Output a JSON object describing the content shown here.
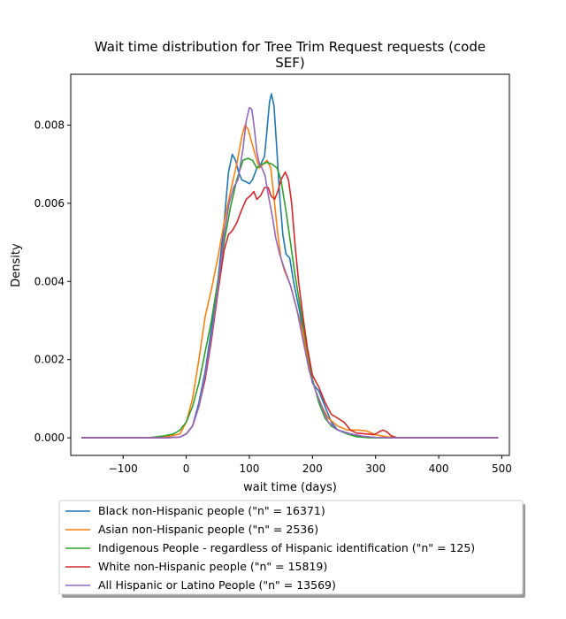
{
  "chart_data": {
    "type": "line",
    "title_line1": "Wait time distribution  for Tree Trim Request requests (code",
    "title_line2": "SEF)",
    "xlabel": "wait time (days)",
    "ylabel": "Density",
    "xlim": [
      -183,
      512
    ],
    "ylim": [
      -0.00045,
      0.0093
    ],
    "x_ticks": [
      -100,
      0,
      100,
      200,
      300,
      400,
      500
    ],
    "x_tick_labels": [
      "−100",
      "0",
      "100",
      "200",
      "300",
      "400",
      "500"
    ],
    "y_ticks": [
      0.0,
      0.002,
      0.004,
      0.006,
      0.008
    ],
    "y_tick_labels": [
      "0.000",
      "0.002",
      "0.004",
      "0.006",
      "0.008"
    ],
    "grid": false,
    "legend_position": "below",
    "series": [
      {
        "name": "Black non-Hispanic people (\"n\" = 16371)",
        "color": "#1f77b4",
        "points": [
          [
            -166,
            0
          ],
          [
            -40,
            0
          ],
          [
            -10,
            2e-05
          ],
          [
            0,
            0.0001
          ],
          [
            10,
            0.0003
          ],
          [
            20,
            0.0009
          ],
          [
            30,
            0.0017
          ],
          [
            40,
            0.0028
          ],
          [
            50,
            0.004
          ],
          [
            60,
            0.0055
          ],
          [
            67,
            0.0068
          ],
          [
            73,
            0.00725
          ],
          [
            78,
            0.0071
          ],
          [
            83,
            0.0068
          ],
          [
            88,
            0.0066
          ],
          [
            95,
            0.00655
          ],
          [
            100,
            0.0065
          ],
          [
            105,
            0.0066
          ],
          [
            112,
            0.0069
          ],
          [
            118,
            0.007
          ],
          [
            124,
            0.0072
          ],
          [
            128,
            0.0079
          ],
          [
            132,
            0.0086
          ],
          [
            135,
            0.0088
          ],
          [
            139,
            0.0085
          ],
          [
            143,
            0.0075
          ],
          [
            148,
            0.0062
          ],
          [
            153,
            0.0052
          ],
          [
            158,
            0.0047
          ],
          [
            164,
            0.0046
          ],
          [
            170,
            0.004
          ],
          [
            180,
            0.0032
          ],
          [
            190,
            0.0022
          ],
          [
            200,
            0.0014
          ],
          [
            210,
            0.0012
          ],
          [
            220,
            0.0008
          ],
          [
            230,
            0.0004
          ],
          [
            240,
            0.0002
          ],
          [
            260,
            0.0001
          ],
          [
            280,
            3e-05
          ],
          [
            300,
            1e-05
          ],
          [
            320,
            0
          ],
          [
            494,
            0
          ]
        ]
      },
      {
        "name": "Asian non-Hispanic people (\"n\" = 2536)",
        "color": "#ff7f0e",
        "points": [
          [
            -166,
            0
          ],
          [
            -40,
            0
          ],
          [
            -10,
            0.0001
          ],
          [
            0,
            0.0004
          ],
          [
            10,
            0.001
          ],
          [
            20,
            0.002
          ],
          [
            30,
            0.0031
          ],
          [
            40,
            0.0038
          ],
          [
            50,
            0.0046
          ],
          [
            60,
            0.0055
          ],
          [
            70,
            0.0063
          ],
          [
            80,
            0.007
          ],
          [
            88,
            0.0077
          ],
          [
            93,
            0.008
          ],
          [
            98,
            0.0079
          ],
          [
            103,
            0.0076
          ],
          [
            110,
            0.0072
          ],
          [
            116,
            0.0069
          ],
          [
            122,
            0.007
          ],
          [
            128,
            0.0071
          ],
          [
            134,
            0.0069
          ],
          [
            140,
            0.006
          ],
          [
            145,
            0.0052
          ],
          [
            150,
            0.0046
          ],
          [
            155,
            0.0043
          ],
          [
            165,
            0.0039
          ],
          [
            175,
            0.0033
          ],
          [
            185,
            0.0027
          ],
          [
            195,
            0.0018
          ],
          [
            205,
            0.0012
          ],
          [
            215,
            0.0008
          ],
          [
            225,
            0.0005
          ],
          [
            240,
            0.0003
          ],
          [
            255,
            0.0002
          ],
          [
            270,
            0.0002
          ],
          [
            285,
            0.00018
          ],
          [
            300,
            8e-05
          ],
          [
            320,
            2e-05
          ],
          [
            340,
            0
          ],
          [
            494,
            0
          ]
        ]
      },
      {
        "name": "Indigenous People - regardless of Hispanic identification (\"n\" = 125)",
        "color": "#2ca02c",
        "points": [
          [
            -166,
            0
          ],
          [
            -60,
            0
          ],
          [
            -35,
            5e-05
          ],
          [
            -20,
            0.0001
          ],
          [
            -10,
            0.0002
          ],
          [
            0,
            0.0004
          ],
          [
            10,
            0.0008
          ],
          [
            20,
            0.0014
          ],
          [
            30,
            0.0022
          ],
          [
            40,
            0.003
          ],
          [
            50,
            0.004
          ],
          [
            60,
            0.005
          ],
          [
            70,
            0.0059
          ],
          [
            80,
            0.0066
          ],
          [
            90,
            0.0071
          ],
          [
            98,
            0.00715
          ],
          [
            105,
            0.0071
          ],
          [
            112,
            0.0069
          ],
          [
            120,
            0.007
          ],
          [
            128,
            0.00705
          ],
          [
            136,
            0.007
          ],
          [
            144,
            0.0069
          ],
          [
            150,
            0.0066
          ],
          [
            158,
            0.0058
          ],
          [
            165,
            0.005
          ],
          [
            172,
            0.0042
          ],
          [
            180,
            0.0034
          ],
          [
            190,
            0.0024
          ],
          [
            200,
            0.0015
          ],
          [
            210,
            0.0009
          ],
          [
            220,
            0.0005
          ],
          [
            230,
            0.0003
          ],
          [
            240,
            0.0002
          ],
          [
            255,
            0.0001
          ],
          [
            270,
            3e-05
          ],
          [
            290,
            0
          ],
          [
            494,
            0
          ]
        ]
      },
      {
        "name": "White non-Hispanic people (\"n\" = 15819)",
        "color": "#d62728",
        "points": [
          [
            -166,
            0
          ],
          [
            -30,
            0
          ],
          [
            -10,
            2e-05
          ],
          [
            0,
            0.0001
          ],
          [
            10,
            0.0003
          ],
          [
            20,
            0.0008
          ],
          [
            30,
            0.0015
          ],
          [
            40,
            0.0025
          ],
          [
            50,
            0.0037
          ],
          [
            60,
            0.0048
          ],
          [
            67,
            0.0052
          ],
          [
            73,
            0.0053
          ],
          [
            80,
            0.0055
          ],
          [
            87,
            0.0058
          ],
          [
            95,
            0.0061
          ],
          [
            102,
            0.0062
          ],
          [
            107,
            0.0063
          ],
          [
            112,
            0.0061
          ],
          [
            118,
            0.0062
          ],
          [
            124,
            0.0064
          ],
          [
            130,
            0.0064
          ],
          [
            134,
            0.0062
          ],
          [
            140,
            0.0061
          ],
          [
            145,
            0.0063
          ],
          [
            150,
            0.0066
          ],
          [
            157,
            0.0068
          ],
          [
            162,
            0.0066
          ],
          [
            167,
            0.006
          ],
          [
            172,
            0.005
          ],
          [
            178,
            0.004
          ],
          [
            185,
            0.0031
          ],
          [
            192,
            0.0023
          ],
          [
            200,
            0.0016
          ],
          [
            210,
            0.0013
          ],
          [
            220,
            0.0009
          ],
          [
            230,
            0.0006
          ],
          [
            240,
            0.0005
          ],
          [
            250,
            0.0004
          ],
          [
            260,
            0.0002
          ],
          [
            270,
            0.00012
          ],
          [
            285,
            0.0001
          ],
          [
            298,
            8e-05
          ],
          [
            305,
            0.00015
          ],
          [
            312,
            0.0002
          ],
          [
            318,
            0.00015
          ],
          [
            325,
            5e-05
          ],
          [
            335,
            0
          ],
          [
            494,
            0
          ]
        ]
      },
      {
        "name": "All Hispanic or Latino People (\"n\" = 13569)",
        "color": "#9467bd",
        "points": [
          [
            -166,
            0
          ],
          [
            -30,
            0
          ],
          [
            -10,
            2e-05
          ],
          [
            0,
            0.0001
          ],
          [
            10,
            0.0003
          ],
          [
            20,
            0.0008
          ],
          [
            30,
            0.0016
          ],
          [
            40,
            0.0026
          ],
          [
            50,
            0.0038
          ],
          [
            60,
            0.0052
          ],
          [
            68,
            0.006
          ],
          [
            75,
            0.0064
          ],
          [
            82,
            0.0066
          ],
          [
            90,
            0.0074
          ],
          [
            95,
            0.0081
          ],
          [
            100,
            0.00845
          ],
          [
            104,
            0.0084
          ],
          [
            108,
            0.0079
          ],
          [
            112,
            0.0073
          ],
          [
            116,
            0.007
          ],
          [
            120,
            0.0069
          ],
          [
            125,
            0.0067
          ],
          [
            130,
            0.0062
          ],
          [
            136,
            0.0057
          ],
          [
            142,
            0.0051
          ],
          [
            148,
            0.0047
          ],
          [
            154,
            0.0044
          ],
          [
            165,
            0.0039
          ],
          [
            175,
            0.0033
          ],
          [
            185,
            0.0025
          ],
          [
            195,
            0.0017
          ],
          [
            205,
            0.0012
          ],
          [
            215,
            0.0008
          ],
          [
            225,
            0.0004
          ],
          [
            240,
            0.0002
          ],
          [
            260,
            0.0001
          ],
          [
            280,
            4e-05
          ],
          [
            300,
            1e-05
          ],
          [
            320,
            0
          ],
          [
            494,
            0
          ]
        ]
      }
    ]
  }
}
